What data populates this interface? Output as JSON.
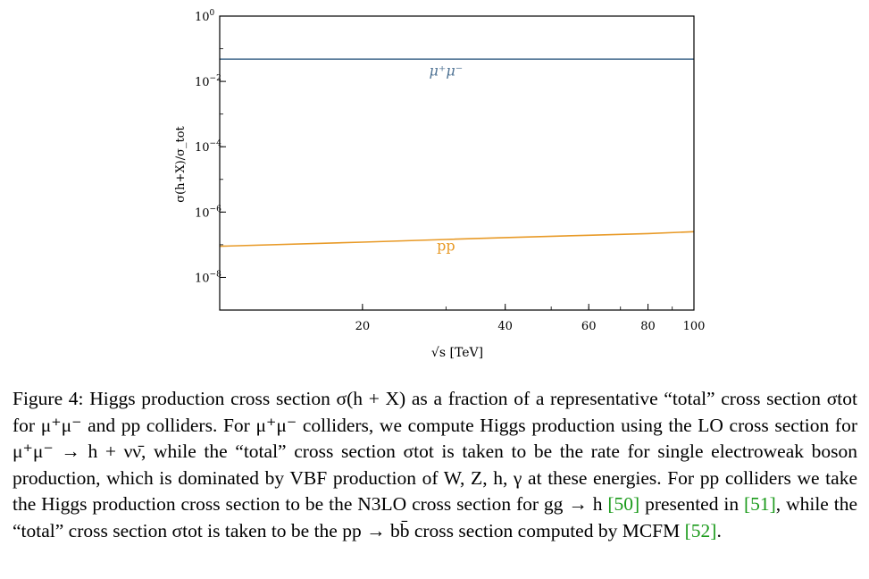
{
  "chart_data": {
    "type": "line",
    "xscale": "log",
    "yscale": "log",
    "xlim": [
      10,
      100
    ],
    "ylim": [
      1e-09,
      1
    ],
    "xlabel": "√s [TeV]",
    "ylabel": "σ(h+X)/σ_tot",
    "xticks": [
      {
        "value": 20,
        "label": "20"
      },
      {
        "value": 40,
        "label": "40"
      },
      {
        "value": 60,
        "label": "60"
      },
      {
        "value": 80,
        "label": "80"
      },
      {
        "value": 100,
        "label": "100"
      }
    ],
    "yticks": [
      {
        "value": 1,
        "base": "10",
        "exp": "0"
      },
      {
        "value": 0.01,
        "base": "10",
        "exp": "−2"
      },
      {
        "value": 0.0001,
        "base": "10",
        "exp": "−4"
      },
      {
        "value": 1e-06,
        "base": "10",
        "exp": "−6"
      },
      {
        "value": 1e-08,
        "base": "10",
        "exp": "−8"
      }
    ],
    "series": [
      {
        "name": "μ⁺μ⁻",
        "color": "#4f7394",
        "x": [
          10,
          20,
          40,
          60,
          80,
          100
        ],
        "y": [
          0.048,
          0.048,
          0.048,
          0.048,
          0.048,
          0.048
        ],
        "label_at": [
          30,
          0.015
        ]
      },
      {
        "name": "pp",
        "color": "#e89a27",
        "x": [
          10,
          20,
          30,
          40,
          60,
          80,
          100
        ],
        "y": [
          9e-08,
          1.2e-07,
          1.45e-07,
          1.65e-07,
          1.95e-07,
          2.2e-07,
          2.5e-07
        ],
        "label_at": [
          30,
          6.5e-08
        ]
      }
    ],
    "grid": false,
    "legend": "none (inline labels)"
  },
  "caption": {
    "figure_label": "Figure 4:",
    "text": " Higgs production cross section σ(h + X) as a fraction of a representative “total” cross section σtot for μ⁺μ⁻ and pp colliders. For μ⁺μ⁻ colliders, we compute Higgs production using the LO cross section for μ⁺μ⁻ → h + νν̄, while the “total” cross section σtot is taken to be the rate for single electroweak boson production, which is dominated by VBF production of W, Z, h, γ at these energies. For pp colliders we take the Higgs production cross section to be the N3LO cross section for gg → h ",
    "ref1": "[50]",
    "mid": " presented in ",
    "ref2": "[51]",
    "text2": ", while the “total” cross section σtot is taken to be the pp → bb̄ cross section computed by MCFM ",
    "ref3": "[52]",
    "end": "."
  }
}
